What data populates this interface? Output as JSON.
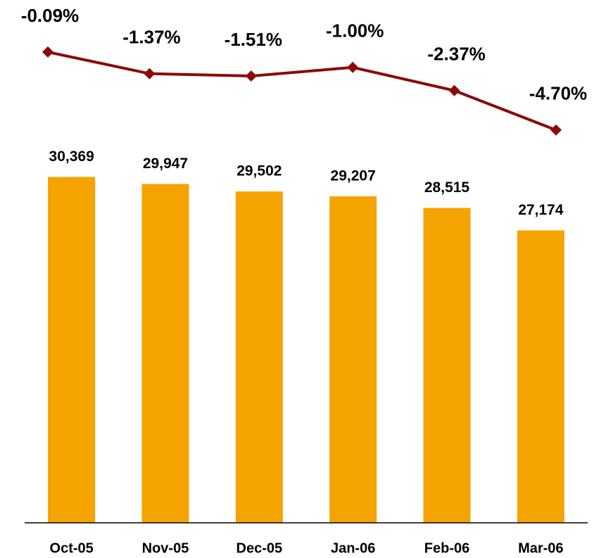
{
  "chart_data": {
    "type": "bar",
    "categories": [
      "Oct-05",
      "Nov-05",
      "Dec-05",
      "Jan-06",
      "Feb-06",
      "Mar-06"
    ],
    "series": [
      {
        "type": "bar",
        "color": "#f5a300",
        "values": [
          30369,
          29947,
          29502,
          29207,
          28515,
          27174
        ],
        "value_labels": [
          "30,369",
          "29,947",
          "29,502",
          "29,207",
          "28,515",
          "27,174"
        ]
      },
      {
        "type": "line",
        "axis": "y2",
        "color": "#8b0a0a",
        "values": [
          -0.09,
          -1.37,
          -1.51,
          -1.0,
          -2.37,
          -4.7
        ],
        "value_labels": [
          "-0.09%",
          "-1.37%",
          "-1.51%",
          "-1.00%",
          "-2.37%",
          "-4.70%"
        ]
      }
    ],
    "ylim": [
      9700,
      40100
    ],
    "y2lim": [
      -27.9,
      2.15
    ]
  }
}
